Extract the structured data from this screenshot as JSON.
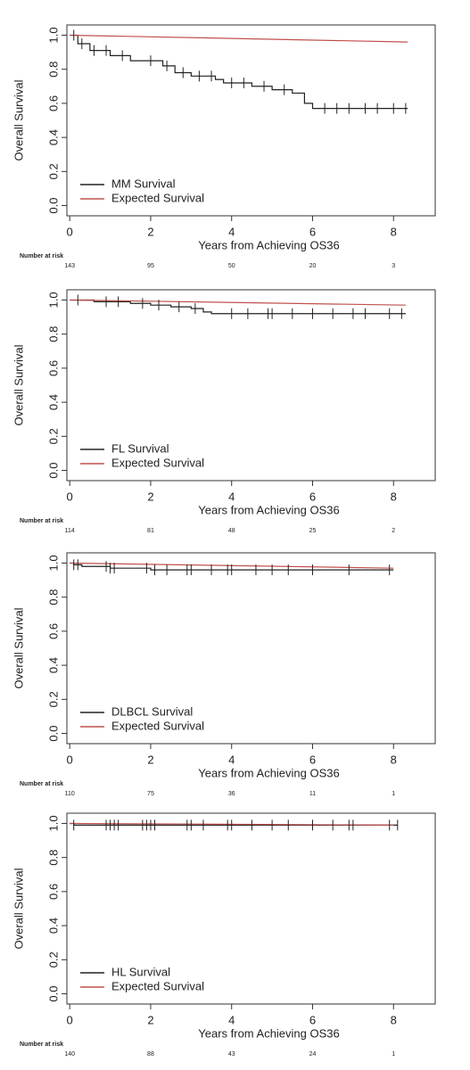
{
  "chart_data": [
    {
      "type": "line",
      "ylabel": "Overall Survival",
      "xlabel": "Years from Achieving OS36",
      "xlim": [
        -0.07,
        9.03
      ],
      "ylim": [
        -0.06,
        1.06
      ],
      "xticks": [
        0,
        2,
        4,
        6,
        8
      ],
      "yticks": [
        {
          "value": 0,
          "label": "0.0"
        },
        0.2,
        0.4,
        0.6,
        0.8,
        {
          "value": 1,
          "label": "1.0"
        }
      ],
      "series": [
        {
          "name": "MM Survival",
          "color": "#222222",
          "step": true,
          "x": [
            0,
            0.2,
            0.5,
            1.0,
            1.5,
            2.3,
            2.6,
            3.0,
            3.6,
            3.8,
            4.5,
            5.0,
            5.5,
            5.8,
            6.0,
            8.35
          ],
          "values": [
            1.0,
            0.95,
            0.91,
            0.88,
            0.85,
            0.82,
            0.78,
            0.76,
            0.74,
            0.72,
            0.7,
            0.68,
            0.66,
            0.6,
            0.57,
            0.57
          ]
        },
        {
          "name": "Expected Survival",
          "color": "#c0504d",
          "x": [
            0,
            8.35
          ],
          "values": [
            1.0,
            0.96
          ]
        }
      ],
      "censored": [
        0.1,
        0.3,
        0.6,
        0.9,
        1.3,
        2.0,
        2.4,
        2.8,
        3.2,
        3.5,
        4.0,
        4.3,
        4.8,
        5.3,
        6.3,
        6.6,
        6.9,
        7.3,
        7.6,
        8.0,
        8.3
      ],
      "risk_label": "Number at risk",
      "at_risk": [
        143,
        95,
        50,
        20,
        3
      ]
    },
    {
      "type": "line",
      "ylabel": "Overall Survival",
      "xlabel": "Years from Achieving OS36",
      "xlim": [
        -0.07,
        9.03
      ],
      "ylim": [
        -0.06,
        1.06
      ],
      "xticks": [
        0,
        2,
        4,
        6,
        8
      ],
      "yticks": [
        {
          "value": 0,
          "label": "0.0"
        },
        0.2,
        0.4,
        0.6,
        0.8,
        {
          "value": 1,
          "label": "1.0"
        }
      ],
      "series": [
        {
          "name": "FL Survival",
          "color": "#222222",
          "step": true,
          "x": [
            0,
            0.6,
            1.5,
            2.0,
            2.5,
            3.0,
            3.3,
            3.5,
            8.3
          ],
          "values": [
            1.0,
            0.99,
            0.98,
            0.97,
            0.96,
            0.95,
            0.93,
            0.92,
            0.92
          ]
        },
        {
          "name": "Expected Survival",
          "color": "#c0504d",
          "x": [
            0,
            8.3
          ],
          "values": [
            1.0,
            0.97
          ]
        }
      ],
      "censored": [
        0.2,
        0.9,
        1.2,
        1.8,
        2.2,
        2.7,
        3.1,
        4.0,
        4.4,
        4.9,
        5.0,
        5.5,
        6.0,
        6.5,
        7.0,
        7.3,
        7.9,
        8.2
      ],
      "risk_label": "Number at risk",
      "at_risk": [
        114,
        81,
        48,
        25,
        2
      ]
    },
    {
      "type": "line",
      "ylabel": "Overall Survival",
      "xlabel": "Years from Achieving OS36",
      "xlim": [
        -0.07,
        9.03
      ],
      "ylim": [
        -0.06,
        1.06
      ],
      "xticks": [
        0,
        2,
        4,
        6,
        8
      ],
      "yticks": [
        {
          "value": 0,
          "label": "0.0"
        },
        0.2,
        0.4,
        0.6,
        0.8,
        {
          "value": 1,
          "label": "1.0"
        }
      ],
      "series": [
        {
          "name": "DLBCL Survival",
          "color": "#222222",
          "step": true,
          "x": [
            0,
            0.1,
            0.3,
            1.0,
            2.0,
            8.0
          ],
          "values": [
            1.0,
            0.99,
            0.98,
            0.97,
            0.96,
            0.96
          ]
        },
        {
          "name": "Expected Survival",
          "color": "#c0504d",
          "x": [
            0,
            8.0
          ],
          "values": [
            1.0,
            0.97
          ]
        }
      ],
      "censored": [
        0.1,
        0.2,
        0.9,
        1.0,
        1.1,
        1.9,
        2.1,
        2.4,
        2.9,
        3.0,
        3.5,
        3.9,
        4.0,
        4.6,
        5.0,
        5.4,
        6.0,
        6.9,
        7.9
      ],
      "risk_label": "Number at risk",
      "at_risk": [
        110,
        75,
        36,
        11,
        1
      ]
    },
    {
      "type": "line",
      "ylabel": "Overall Survival",
      "xlabel": "Years from Achieving OS36",
      "xlim": [
        -0.07,
        9.03
      ],
      "ylim": [
        -0.06,
        1.06
      ],
      "xticks": [
        0,
        2,
        4,
        6,
        8
      ],
      "yticks": [
        {
          "value": 0,
          "label": "0.0"
        },
        0.2,
        0.4,
        0.6,
        0.8,
        {
          "value": 1,
          "label": "1.0"
        }
      ],
      "series": [
        {
          "name": "HL Survival",
          "color": "#222222",
          "step": true,
          "x": [
            0,
            0.1,
            8.1
          ],
          "values": [
            1.0,
            0.99,
            0.99
          ]
        },
        {
          "name": "Expected Survival",
          "color": "#c0504d",
          "x": [
            0,
            8.0
          ],
          "values": [
            1.0,
            0.99
          ]
        }
      ],
      "censored": [
        0.1,
        0.9,
        1.0,
        1.1,
        1.2,
        1.8,
        1.9,
        2.0,
        2.1,
        2.9,
        3.0,
        3.3,
        3.9,
        4.0,
        4.5,
        5.0,
        5.4,
        6.0,
        6.5,
        6.9,
        7.0,
        7.9,
        8.1
      ],
      "risk_label": "Number at risk",
      "at_risk": [
        140,
        88,
        43,
        24,
        1
      ]
    }
  ]
}
